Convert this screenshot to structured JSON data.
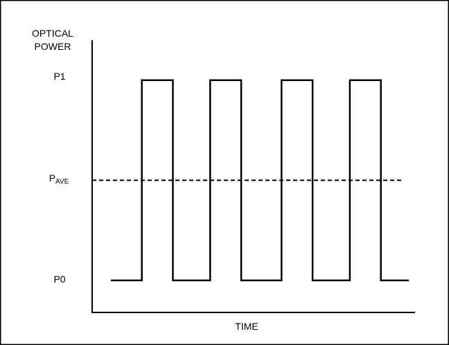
{
  "chart_data": {
    "type": "line",
    "title": "",
    "xlabel": "TIME",
    "ylabel_lines": [
      "OPTICAL",
      "POWER"
    ],
    "ylabel": "OPTICAL POWER",
    "levels": {
      "P1": {
        "label": "P1",
        "value": 1.0
      },
      "PAVE": {
        "label_main": "P",
        "label_sub": "AVE",
        "label": "PAVE",
        "value": 0.5,
        "style": "dashed"
      },
      "P0": {
        "label": "P0",
        "value": 0.0
      }
    },
    "series": [
      {
        "x": [
          0,
          1,
          1,
          2,
          2,
          3.2,
          3.2,
          4.2,
          4.2,
          5.5,
          5.5,
          6.5,
          6.5,
          7.7,
          7.7,
          8.7,
          8.7,
          9.6
        ],
        "y": [
          0,
          0,
          1,
          1,
          0,
          0,
          1,
          1,
          0,
          0,
          1,
          1,
          0,
          0,
          1,
          1,
          0,
          0
        ]
      }
    ],
    "average_line_x": [
      -0.6,
      9.4
    ],
    "xlim": [
      -0.6,
      9.8
    ],
    "ylim": [
      -0.16,
      1.2
    ],
    "grid": false,
    "legend": "none"
  }
}
